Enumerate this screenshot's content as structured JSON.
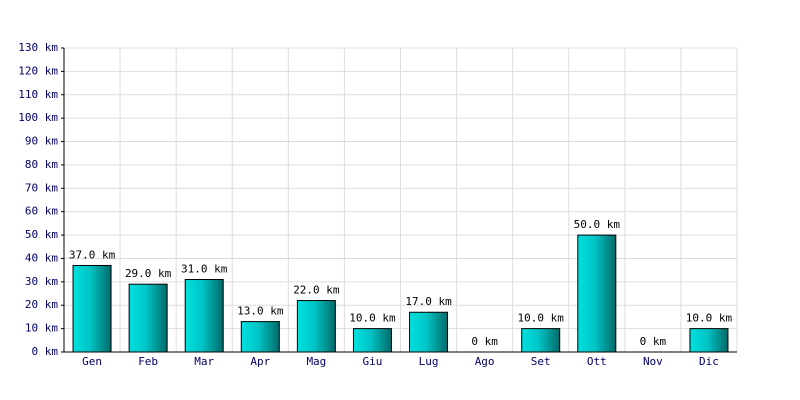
{
  "chart_data": {
    "type": "bar",
    "categories": [
      "Gen",
      "Feb",
      "Mar",
      "Apr",
      "Mag",
      "Giu",
      "Lug",
      "Ago",
      "Set",
      "Ott",
      "Nov",
      "Dic"
    ],
    "values": [
      37,
      29,
      31,
      13,
      22,
      10,
      17,
      0,
      10,
      50,
      0,
      10
    ],
    "value_labels": [
      "37.0 km",
      "29.0 km",
      "31.0 km",
      "13.0 km",
      "22.0 km",
      "10.0 km",
      "17.0 km",
      "0 km",
      "10.0 km",
      "50.0 km",
      "0 km",
      "10.0 km"
    ],
    "color": "#00cccc",
    "ylim": [
      0,
      130
    ],
    "yticks": [
      {
        "value": 0,
        "label": "0 km"
      },
      {
        "value": 10,
        "label": "10 km"
      },
      {
        "value": 20,
        "label": "20 km"
      },
      {
        "value": 30,
        "label": "30 km"
      },
      {
        "value": 40,
        "label": "40 km"
      },
      {
        "value": 50,
        "label": "50 km"
      },
      {
        "value": 60,
        "label": "60 km"
      },
      {
        "value": 70,
        "label": "70 km"
      },
      {
        "value": 80,
        "label": "80 km"
      },
      {
        "value": 90,
        "label": "90 km"
      },
      {
        "value": 100,
        "label": "100 km"
      },
      {
        "value": 110,
        "label": "110 km"
      },
      {
        "value": 120,
        "label": "120 km"
      },
      {
        "value": 130,
        "label": "130 km"
      }
    ],
    "grid": true
  }
}
